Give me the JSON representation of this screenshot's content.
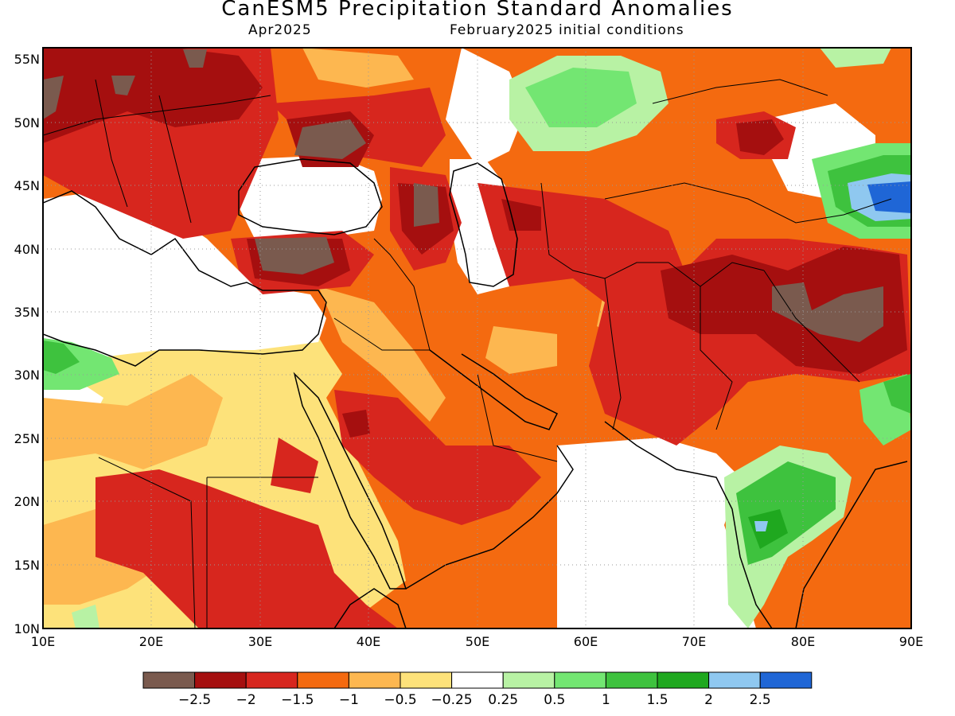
{
  "header": {
    "title": "CanESM5 Precipitation Standard Anomalies",
    "valid_month": "Apr2025",
    "init_conditions": "February2025 initial conditions"
  },
  "axes": {
    "lat_labels": [
      "55N",
      "50N",
      "45N",
      "40N",
      "35N",
      "30N",
      "25N",
      "20N",
      "15N",
      "10N"
    ],
    "lon_labels": [
      "10E",
      "20E",
      "30E",
      "40E",
      "50E",
      "60E",
      "70E",
      "80E",
      "90E"
    ]
  },
  "colorbar": {
    "colors": [
      "#7a5a4e",
      "#a50f0f",
      "#d7261e",
      "#f46a10",
      "#fdb750",
      "#fde27a",
      "#ffffff",
      "#b8f2a4",
      "#73e672",
      "#3ec23e",
      "#1fa81f",
      "#8fc8f0",
      "#1f66d6"
    ],
    "labels": [
      "−2.5",
      "−2",
      "−1.5",
      "−1",
      "−0.5",
      "−0.25",
      "0.25",
      "0.5",
      "1",
      "1.5",
      "2",
      "2.5"
    ]
  }
}
